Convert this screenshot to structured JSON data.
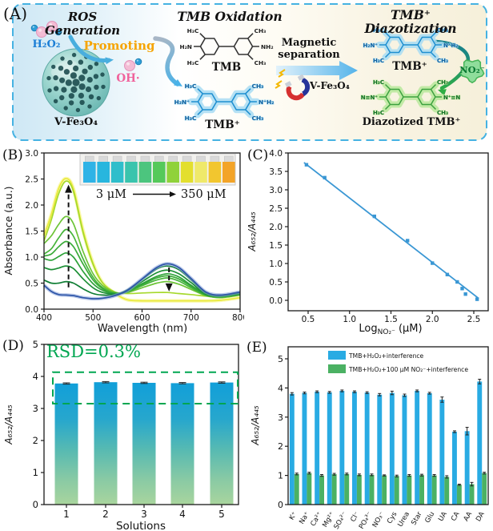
{
  "panel_labels": {
    "a": "(A)",
    "b": "(B)",
    "c": "(C)",
    "d": "(D)",
    "e": "(E)"
  },
  "panel_a": {
    "ros": {
      "title": "ROS Generation",
      "h2o2": "H₂O₂",
      "promoting": "Promoting",
      "oh_radical": "OH·",
      "catalyst": "V-Fe₃O₄"
    },
    "oxidation": {
      "title": "TMB Oxidation",
      "tmb": "TMB",
      "tmb_plus": "TMB⁺",
      "magnetic": "Magnetic separation",
      "catalyst": "V-Fe₃O₄"
    },
    "diazotization": {
      "title": "TMB⁺ Diazotization",
      "tmb_plus": "TMB⁺",
      "no2": "NO₂⁻",
      "product": "Diazotized TMB⁺"
    },
    "molecule_labels": {
      "tmb": {
        "tl": "H₃C",
        "tr": "CH₃",
        "l": "H₂N",
        "r": "NH₂",
        "bl": "H₃C",
        "br": "CH₃"
      },
      "tmb_plus": {
        "tl": "H₃C",
        "tr": "CH₃",
        "l": "H₂N⁺",
        "r": "N⁺H₂",
        "bl": "H₃C",
        "br": "CH₃"
      },
      "diazotized": {
        "tl": "H₃C",
        "tr": "CH₃",
        "l": "N≡N⁺",
        "r": "N⁺≡N",
        "bl": "H₃C",
        "br": "CH₃"
      }
    },
    "colors": {
      "border": "#45b2e2",
      "h2o2_text": "#1d7fd6",
      "promoting": "#f6a400",
      "oh": "#f0639c",
      "no2_text": "#0b7a33",
      "mol_blue": "#1f8fd0",
      "mol_blue_glow": "#a8dcf3",
      "mol_green": "#3da23f",
      "mol_green_glow": "#b9e79b"
    }
  },
  "chart_data": [
    {
      "panel": "B",
      "type": "line",
      "xlabel": "Wavelength (nm)",
      "ylabel": "Absorbance (a.u.)",
      "xlim": [
        400,
        800
      ],
      "ylim": [
        0,
        3.0
      ],
      "xticks": [
        400,
        500,
        600,
        700,
        800
      ],
      "yticks": [
        0.0,
        0.5,
        1.0,
        1.5,
        2.0,
        2.5,
        3.0
      ],
      "x_samples": [
        400,
        415,
        430,
        445,
        460,
        480,
        500,
        520,
        545,
        570,
        600,
        630,
        652,
        675,
        700,
        730,
        760,
        800
      ],
      "series": [
        {
          "color": "#2e55a8",
          "glow": "#8fa8dc",
          "values": [
            0.46,
            0.34,
            0.28,
            0.27,
            0.26,
            0.22,
            0.2,
            0.21,
            0.26,
            0.36,
            0.58,
            0.8,
            0.87,
            0.8,
            0.59,
            0.33,
            0.27,
            0.33
          ]
        },
        {
          "color": "#0e7d33",
          "values": [
            0.56,
            0.5,
            0.5,
            0.53,
            0.5,
            0.39,
            0.3,
            0.27,
            0.28,
            0.37,
            0.57,
            0.77,
            0.83,
            0.76,
            0.56,
            0.31,
            0.26,
            0.31
          ]
        },
        {
          "color": "#1c8f35",
          "values": [
            0.8,
            0.76,
            0.79,
            0.83,
            0.78,
            0.58,
            0.41,
            0.32,
            0.29,
            0.36,
            0.53,
            0.7,
            0.75,
            0.68,
            0.51,
            0.29,
            0.25,
            0.3
          ]
        },
        {
          "color": "#2da238",
          "values": [
            0.97,
            0.94,
            1.01,
            1.08,
            1.0,
            0.72,
            0.49,
            0.36,
            0.3,
            0.35,
            0.49,
            0.63,
            0.68,
            0.62,
            0.46,
            0.28,
            0.24,
            0.29
          ]
        },
        {
          "color": "#3aab39",
          "values": [
            1.02,
            1.06,
            1.2,
            1.3,
            1.2,
            0.86,
            0.56,
            0.39,
            0.3,
            0.34,
            0.47,
            0.6,
            0.64,
            0.58,
            0.44,
            0.27,
            0.24,
            0.28
          ]
        },
        {
          "color": "#46b43a",
          "values": [
            1.06,
            1.16,
            1.37,
            1.53,
            1.4,
            0.96,
            0.61,
            0.41,
            0.31,
            0.33,
            0.45,
            0.56,
            0.6,
            0.54,
            0.41,
            0.27,
            0.23,
            0.28
          ]
        },
        {
          "color": "#6cc436",
          "values": [
            1.26,
            1.41,
            1.63,
            1.78,
            1.64,
            1.1,
            0.68,
            0.45,
            0.32,
            0.32,
            0.41,
            0.5,
            0.53,
            0.48,
            0.38,
            0.26,
            0.22,
            0.27
          ]
        },
        {
          "color": "#a6d92c",
          "values": [
            1.31,
            1.72,
            2.22,
            2.46,
            2.26,
            1.46,
            0.86,
            0.5,
            0.33,
            0.3,
            0.31,
            0.32,
            0.32,
            0.3,
            0.28,
            0.25,
            0.23,
            0.27
          ]
        },
        {
          "color": "#e9e93a",
          "glow": "#f7f57e",
          "values": [
            1.41,
            1.82,
            2.32,
            2.51,
            2.31,
            1.5,
            0.88,
            0.5,
            0.3,
            0.18,
            0.16,
            0.16,
            0.16,
            0.16,
            0.16,
            0.16,
            0.17,
            0.22
          ]
        }
      ],
      "arrows": [
        {
          "x": 450,
          "y_from": 0.42,
          "y_to": 2.36,
          "dir": "up"
        },
        {
          "x": 655,
          "y_from": 0.8,
          "y_to": 0.37,
          "dir": "down"
        }
      ],
      "inset": {
        "from": "3 μM",
        "to": "350 μM",
        "vial_colors": [
          "#2fb3e6",
          "#28b6de",
          "#2fbecb",
          "#3ac4ad",
          "#4cc57e",
          "#55c95a",
          "#90d23a",
          "#e3df2e",
          "#efe96a",
          "#f2c62f",
          "#f3a428"
        ]
      }
    },
    {
      "panel": "C",
      "type": "scatter",
      "xlabel_pre": "Log",
      "xlabel_sub": "NO₂⁻",
      "xlabel_post": " (μM)",
      "ylabel": "A₆₅₂/A₄₄₅",
      "xlim": [
        0.26,
        2.67
      ],
      "ylim": [
        -0.28,
        4.0
      ],
      "xticks": [
        0.5,
        1.0,
        1.5,
        2.0,
        2.5
      ],
      "yticks": [
        0.0,
        0.5,
        1.0,
        1.5,
        2.0,
        2.5,
        3.0,
        3.5,
        4.0
      ],
      "points": [
        [
          0.48,
          3.68
        ],
        [
          0.7,
          3.33
        ],
        [
          1.3,
          2.28
        ],
        [
          1.7,
          1.62
        ],
        [
          2.0,
          1.01
        ],
        [
          2.18,
          0.7
        ],
        [
          2.3,
          0.5
        ],
        [
          2.36,
          0.32
        ],
        [
          2.4,
          0.17
        ],
        [
          2.54,
          0.03
        ]
      ],
      "fit_line": {
        "x1": 0.45,
        "y1": 3.74,
        "x2": 2.56,
        "y2": 0.05
      },
      "color": "#3a97d4"
    },
    {
      "panel": "D",
      "type": "bar",
      "categories": [
        "1",
        "2",
        "3",
        "4",
        "5"
      ],
      "values": [
        3.78,
        3.82,
        3.8,
        3.79,
        3.81
      ],
      "errors": [
        0.02,
        0.02,
        0.02,
        0.02,
        0.02
      ],
      "xlabel": "Solutions",
      "ylabel": "A₆₅₂/A₄₄₅",
      "ylim": [
        0,
        5
      ],
      "yticks": [
        0,
        1,
        2,
        3,
        4,
        5
      ],
      "annotation": "RSD=0.3%",
      "annotation_color": "#00a651",
      "dashed_box": {
        "y_low": 3.15,
        "y_high": 4.13
      },
      "gradient": [
        "#119fd9",
        "#27a7cd",
        "#57bab2",
        "#8acaa4",
        "#a9d59e"
      ]
    },
    {
      "panel": "E",
      "type": "bar",
      "categories": [
        "K⁺",
        "Na⁺",
        "Ca²⁺",
        "Mg²⁺",
        "SO₄²⁻",
        "Cl⁻",
        "PO₄³⁻",
        "NO₃⁻",
        "Cys",
        "Urea",
        "Star",
        "Glu",
        "UA",
        "CA",
        "AA",
        "DA"
      ],
      "series": [
        {
          "name": "TMB+H₂O₂+interference",
          "color": "#29abe3",
          "values": [
            3.8,
            3.83,
            3.87,
            3.85,
            3.9,
            3.87,
            3.84,
            3.77,
            3.83,
            3.75,
            3.9,
            3.82,
            3.6,
            2.5,
            2.52,
            4.22
          ],
          "errors": [
            0.04,
            0.03,
            0.03,
            0.03,
            0.03,
            0.03,
            0.03,
            0.04,
            0.06,
            0.04,
            0.03,
            0.03,
            0.09,
            0.03,
            0.13,
            0.08
          ]
        },
        {
          "name": "TMB+H₂O₂+100 μM NO₂⁻+interference",
          "color": "#4bb163",
          "values": [
            1.05,
            1.08,
            1.0,
            1.04,
            1.05,
            1.02,
            1.02,
            1.0,
            0.98,
            1.0,
            1.01,
            1.0,
            0.95,
            0.68,
            0.7,
            1.08
          ],
          "errors": [
            0.03,
            0.03,
            0.03,
            0.03,
            0.03,
            0.03,
            0.03,
            0.02,
            0.03,
            0.03,
            0.03,
            0.03,
            0.04,
            0.02,
            0.06,
            0.03
          ]
        }
      ],
      "ylabel": "A₆₅₂/A₄₄₅",
      "ylim": [
        0,
        5
      ],
      "yticks": [
        0,
        1,
        2,
        3,
        4,
        5
      ]
    }
  ]
}
